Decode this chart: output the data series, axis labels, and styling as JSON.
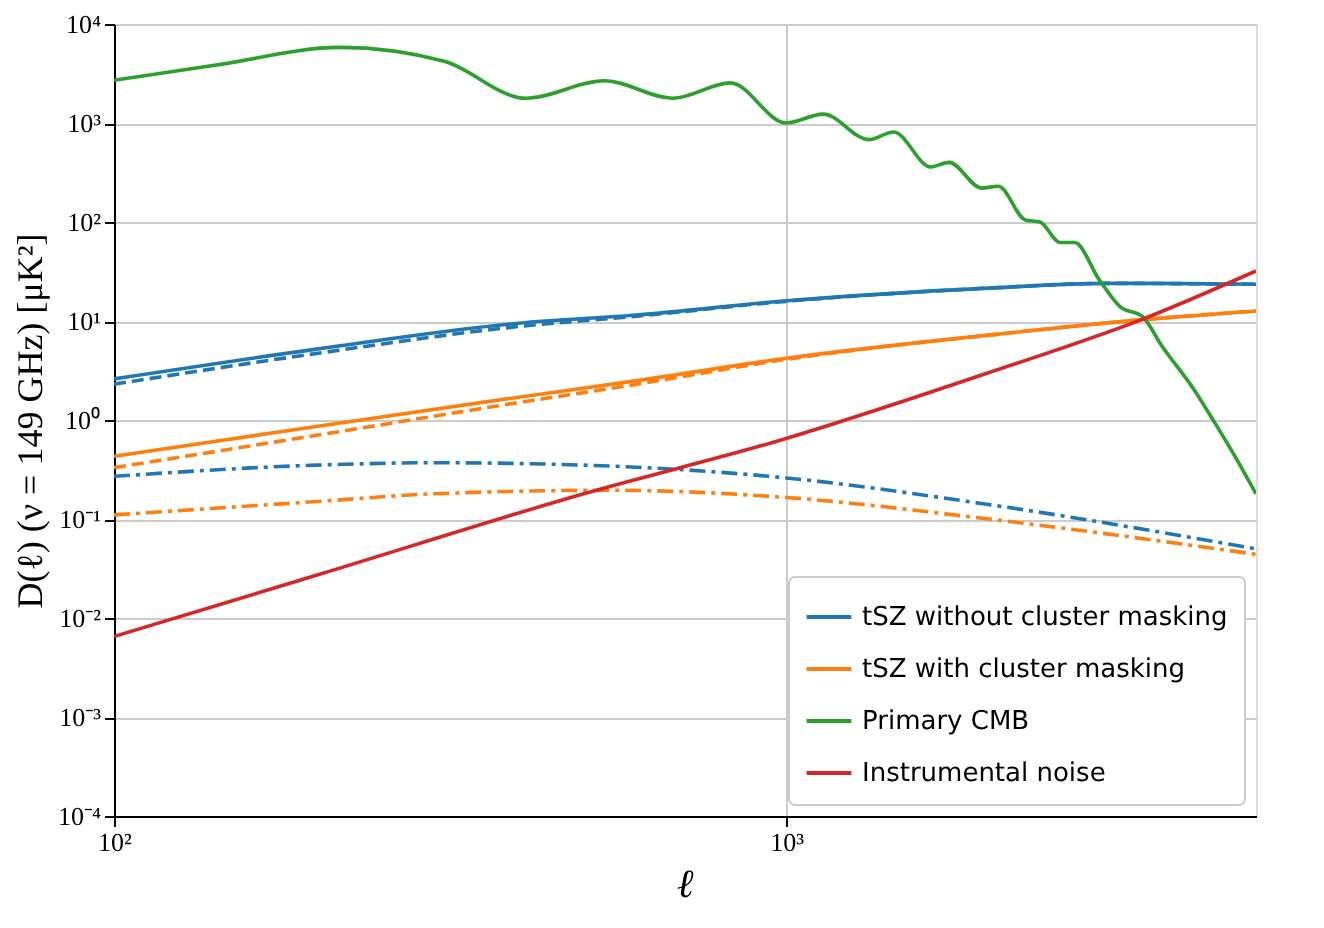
{
  "chart_data": {
    "type": "line",
    "xlabel": "ℓ",
    "ylabel": "D(ℓ) (ν = 149 GHz) [μK²]",
    "log": "xy",
    "grid": true,
    "legend": "bottom right",
    "marker": "none",
    "xlim": [
      100,
      5000
    ],
    "ylim": [
      0.0001,
      10000
    ],
    "xticks": [
      {
        "value": 100,
        "label": "10²"
      },
      {
        "value": 1000,
        "label": "10³"
      }
    ],
    "yticks": [
      {
        "value": 0.0001,
        "label": "10⁻⁴"
      },
      {
        "value": 0.001,
        "label": "10⁻³"
      },
      {
        "value": 0.01,
        "label": "10⁻²"
      },
      {
        "value": 0.1,
        "label": "10⁻¹"
      },
      {
        "value": 1,
        "label": "10⁰"
      },
      {
        "value": 10,
        "label": "10¹"
      },
      {
        "value": 100,
        "label": "10²"
      },
      {
        "value": 1000,
        "label": "10³"
      },
      {
        "value": 10000,
        "label": "10⁴"
      }
    ],
    "series": [
      {
        "name": "tSZ without cluster masking",
        "color": "#1f77b4",
        "line_style": "solid",
        "x": [
          100,
          200,
          400,
          600,
          1000,
          2000,
          3000,
          3500,
          5000
        ],
        "values": [
          2.6,
          5.2,
          9.5,
          11.5,
          16,
          21.5,
          24,
          24,
          23.5
        ]
      },
      {
        "color": "#1f77b4",
        "line_style": "dashed",
        "x": [
          100,
          200,
          400,
          600,
          1000,
          2000,
          3000,
          5000
        ],
        "values": [
          2.3,
          4.7,
          8.8,
          11.2,
          15.8,
          21.5,
          24,
          23.5
        ]
      },
      {
        "color": "#1f77b4",
        "line_style": "dashdot",
        "x": [
          100,
          200,
          300,
          500,
          1000,
          2000,
          5000
        ],
        "values": [
          0.27,
          0.35,
          0.37,
          0.35,
          0.26,
          0.14,
          0.05
        ]
      },
      {
        "name": "tSZ with cluster masking",
        "color": "#ff7f0e",
        "line_style": "solid",
        "x": [
          100,
          200,
          400,
          600,
          1000,
          2000,
          3500,
          5000
        ],
        "values": [
          0.43,
          0.86,
          1.7,
          2.5,
          4.2,
          7.2,
          10.5,
          12.6
        ]
      },
      {
        "color": "#ff7f0e",
        "line_style": "dashed",
        "x": [
          100,
          200,
          400,
          600,
          1000,
          2000,
          3500,
          5000
        ],
        "values": [
          0.33,
          0.7,
          1.5,
          2.3,
          4.1,
          7.2,
          10.5,
          12.6
        ]
      },
      {
        "color": "#ff7f0e",
        "line_style": "dashdot",
        "x": [
          100,
          200,
          300,
          550,
          1000,
          2000,
          5000
        ],
        "values": [
          0.11,
          0.15,
          0.18,
          0.195,
          0.165,
          0.1,
          0.044
        ]
      },
      {
        "name": "Primary CMB",
        "color": "#2ca02c",
        "line_style": "solid",
        "x": [
          100,
          142,
          217,
          310,
          410,
          537,
          678,
          826,
          1000,
          1135,
          1327,
          1445,
          1641,
          1747,
          1954,
          2069,
          2268,
          2385,
          2558,
          2687,
          2923,
          3138,
          3394,
          3616,
          4049,
          4345,
          4634,
          5000
        ],
        "values": [
          2700,
          3850,
          5800,
          4200,
          1780,
          2670,
          1780,
          2540,
          1000,
          1230,
          680,
          810,
          360,
          400,
          220,
          230,
          105,
          100,
          62,
          62,
          26,
          14,
          11,
          5.7,
          2.0,
          0.93,
          0.45,
          0.18
        ]
      },
      {
        "name": "Instrumental noise",
        "color": "#d62728",
        "line_style": "solid",
        "x": [
          100,
          200,
          500,
          1000,
          2000,
          3400,
          5000
        ],
        "values": [
          0.0065,
          0.027,
          0.18,
          0.65,
          3.0,
          10.5,
          32
        ]
      }
    ]
  }
}
